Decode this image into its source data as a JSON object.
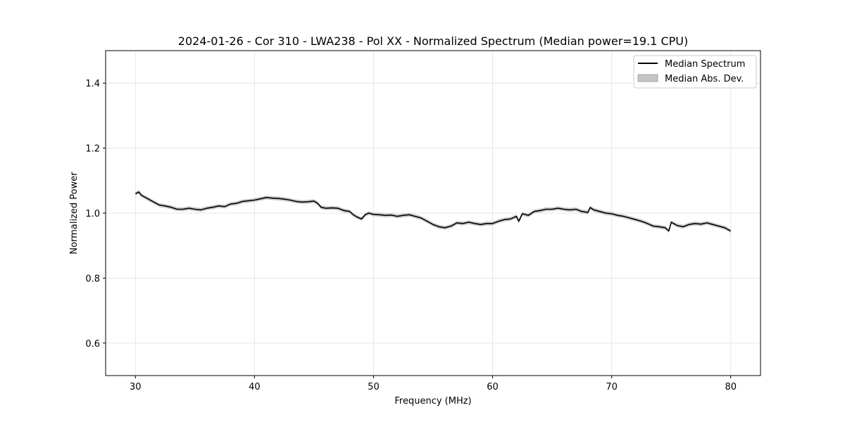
{
  "chart_data": {
    "type": "line",
    "title": "2024-01-26 - Cor 310 - LWA238 - Pol XX - Normalized Spectrum (Median power=19.1 CPU)",
    "xlabel": "Frequency (MHz)",
    "ylabel": "Normalized Power",
    "xlim": [
      27.5,
      82.5
    ],
    "ylim": [
      0.5,
      1.5
    ],
    "xticks": [
      30,
      40,
      50,
      60,
      70,
      80
    ],
    "yticks": [
      0.6,
      0.8,
      1.0,
      1.2,
      1.4
    ],
    "xtick_labels": [
      "30",
      "40",
      "50",
      "60",
      "70",
      "80"
    ],
    "ytick_labels": [
      "0.6",
      "0.8",
      "1.0",
      "1.2",
      "1.4"
    ],
    "grid": true,
    "legend_position": "top-right",
    "legend": [
      "Median Spectrum",
      "Median Abs. Dev."
    ],
    "colors": {
      "line": "#000000",
      "band": "#c4c4c4",
      "grid": "#e6e6e6"
    },
    "series": [
      {
        "name": "Median Spectrum",
        "x": [
          30.0,
          30.3,
          30.5,
          31.0,
          31.5,
          32.0,
          32.5,
          33.0,
          33.5,
          34.0,
          34.5,
          35.0,
          35.5,
          36.0,
          36.5,
          37.0,
          37.5,
          38.0,
          38.5,
          39.0,
          39.5,
          40.0,
          40.5,
          41.0,
          41.5,
          42.0,
          42.5,
          43.0,
          43.5,
          44.0,
          44.5,
          45.0,
          45.3,
          45.6,
          46.0,
          46.5,
          47.0,
          47.5,
          48.0,
          48.3,
          48.6,
          49.0,
          49.3,
          49.6,
          50.0,
          50.5,
          51.0,
          51.5,
          52.0,
          52.5,
          53.0,
          53.5,
          54.0,
          54.5,
          55.0,
          55.5,
          56.0,
          56.5,
          57.0,
          57.5,
          58.0,
          58.5,
          59.0,
          59.5,
          60.0,
          60.5,
          61.0,
          61.5,
          62.0,
          62.2,
          62.5,
          63.0,
          63.5,
          64.0,
          64.5,
          65.0,
          65.5,
          66.0,
          66.5,
          67.0,
          67.5,
          68.0,
          68.2,
          68.5,
          69.0,
          69.5,
          70.0,
          70.5,
          71.0,
          71.5,
          72.0,
          72.5,
          73.0,
          73.5,
          74.0,
          74.5,
          74.8,
          75.0,
          75.5,
          76.0,
          76.5,
          77.0,
          77.5,
          78.0,
          78.5,
          79.0,
          79.5,
          80.0
        ],
        "values": [
          1.06,
          1.065,
          1.055,
          1.045,
          1.035,
          1.025,
          1.022,
          1.018,
          1.012,
          1.012,
          1.015,
          1.012,
          1.01,
          1.015,
          1.018,
          1.022,
          1.02,
          1.028,
          1.03,
          1.036,
          1.038,
          1.04,
          1.044,
          1.048,
          1.046,
          1.045,
          1.043,
          1.04,
          1.036,
          1.034,
          1.035,
          1.037,
          1.03,
          1.018,
          1.015,
          1.016,
          1.015,
          1.008,
          1.005,
          0.995,
          0.988,
          0.982,
          0.995,
          1.0,
          0.996,
          0.995,
          0.993,
          0.994,
          0.99,
          0.993,
          0.995,
          0.99,
          0.985,
          0.975,
          0.965,
          0.958,
          0.955,
          0.96,
          0.97,
          0.968,
          0.972,
          0.968,
          0.965,
          0.968,
          0.968,
          0.975,
          0.98,
          0.982,
          0.99,
          0.975,
          0.998,
          0.993,
          1.005,
          1.008,
          1.012,
          1.012,
          1.015,
          1.012,
          1.01,
          1.012,
          1.005,
          1.002,
          1.017,
          1.01,
          1.005,
          1.0,
          0.998,
          0.993,
          0.99,
          0.985,
          0.98,
          0.975,
          0.968,
          0.96,
          0.958,
          0.955,
          0.945,
          0.972,
          0.962,
          0.958,
          0.965,
          0.968,
          0.966,
          0.97,
          0.965,
          0.96,
          0.955,
          0.945
        ]
      },
      {
        "name": "Median Abs. Dev.",
        "deviation": 0.006
      }
    ]
  }
}
